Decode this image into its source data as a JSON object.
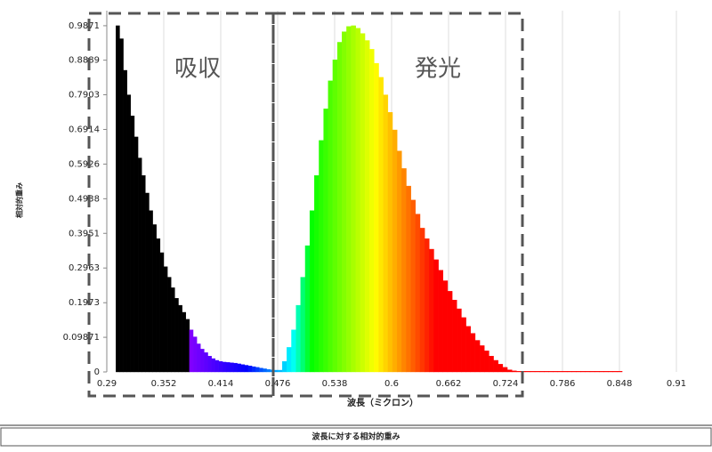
{
  "chart_data": {
    "type": "bar",
    "y_label": "相対的重み",
    "x_label": "波長（ミクロン）",
    "table_title": "波長に対する相対的重み",
    "annotations": [
      "吸収",
      "発光"
    ],
    "xlim": [
      0.29,
      0.91
    ],
    "ylim": [
      0,
      1.03
    ],
    "grid": true,
    "xticks": [
      0.29,
      0.352,
      0.414,
      0.476,
      0.538,
      0.6,
      0.662,
      0.724,
      0.786,
      0.848,
      0.91
    ],
    "yticks": [
      0,
      0.09871,
      0.1973,
      0.2963,
      0.3951,
      0.4938,
      0.5926,
      0.6914,
      0.7903,
      0.8889,
      0.9871
    ],
    "x": [
      0.3,
      0.304,
      0.308,
      0.312,
      0.316,
      0.32,
      0.324,
      0.328,
      0.332,
      0.336,
      0.34,
      0.344,
      0.348,
      0.352,
      0.356,
      0.36,
      0.364,
      0.368,
      0.372,
      0.376,
      0.38,
      0.384,
      0.388,
      0.392,
      0.396,
      0.4,
      0.404,
      0.408,
      0.412,
      0.416,
      0.42,
      0.424,
      0.428,
      0.432,
      0.436,
      0.44,
      0.444,
      0.448,
      0.452,
      0.456,
      0.46,
      0.464,
      0.468,
      0.472,
      0.476,
      0.481,
      0.486,
      0.491,
      0.496,
      0.501,
      0.506,
      0.511,
      0.516,
      0.521,
      0.526,
      0.531,
      0.536,
      0.541,
      0.546,
      0.551,
      0.556,
      0.561,
      0.566,
      0.571,
      0.576,
      0.581,
      0.586,
      0.591,
      0.596,
      0.601,
      0.606,
      0.611,
      0.616,
      0.621,
      0.626,
      0.631,
      0.636,
      0.641,
      0.646,
      0.651,
      0.656,
      0.661,
      0.666,
      0.671,
      0.676,
      0.681,
      0.686,
      0.691,
      0.696,
      0.701,
      0.706,
      0.711,
      0.716,
      0.721,
      0.726,
      0.731,
      0.736,
      0.741,
      0.746,
      0.751,
      0.756,
      0.761,
      0.766,
      0.771,
      0.776,
      0.781,
      0.786,
      0.791,
      0.796,
      0.801,
      0.806,
      0.811,
      0.816,
      0.821,
      0.826,
      0.831,
      0.836,
      0.841,
      0.846
    ],
    "values": [
      0.9871,
      0.95,
      0.86,
      0.79,
      0.73,
      0.67,
      0.61,
      0.56,
      0.51,
      0.46,
      0.42,
      0.38,
      0.34,
      0.3,
      0.27,
      0.24,
      0.21,
      0.19,
      0.17,
      0.15,
      0.12,
      0.1,
      0.08,
      0.065,
      0.055,
      0.045,
      0.038,
      0.033,
      0.03,
      0.028,
      0.027,
      0.026,
      0.025,
      0.023,
      0.021,
      0.019,
      0.017,
      0.015,
      0.013,
      0.011,
      0.009,
      0.007,
      0.006,
      0.005,
      0.005,
      0.03,
      0.07,
      0.12,
      0.19,
      0.27,
      0.36,
      0.46,
      0.56,
      0.66,
      0.75,
      0.83,
      0.89,
      0.94,
      0.97,
      0.985,
      0.9871,
      0.98,
      0.965,
      0.945,
      0.92,
      0.88,
      0.84,
      0.79,
      0.74,
      0.69,
      0.63,
      0.58,
      0.53,
      0.49,
      0.45,
      0.41,
      0.38,
      0.35,
      0.32,
      0.29,
      0.26,
      0.23,
      0.205,
      0.18,
      0.155,
      0.13,
      0.11,
      0.09,
      0.075,
      0.06,
      0.045,
      0.033,
      0.022,
      0.013,
      0.006,
      0.003,
      0.002,
      0.002,
      0.002,
      0.002,
      0.002,
      0.002,
      0.002,
      0.002,
      0.002,
      0.002,
      0.002,
      0.002,
      0.002,
      0.002,
      0.002,
      0.002,
      0.002,
      0.002,
      0.002,
      0.002,
      0.002,
      0.002,
      0.002
    ]
  }
}
